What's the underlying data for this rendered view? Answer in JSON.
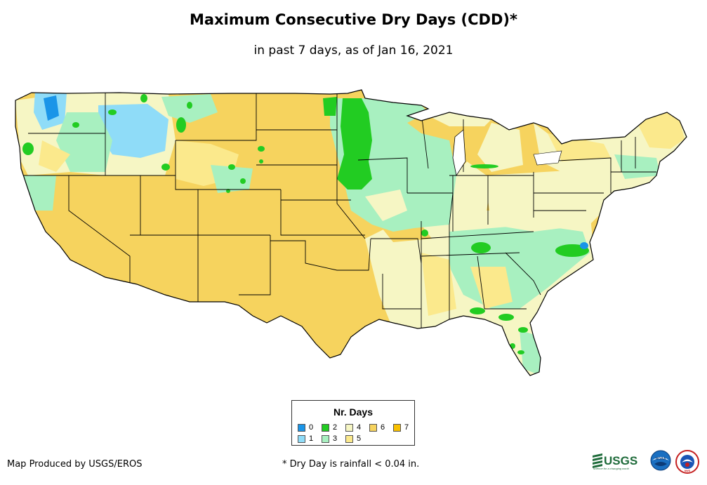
{
  "title": "Maximum Consecutive Dry Days (CDD)*",
  "subtitle": "in past 7 days, as of Jan 16, 2021",
  "legend": {
    "title": "Nr. Days",
    "items": [
      {
        "label": "0",
        "color": "#1a95e8"
      },
      {
        "label": "1",
        "color": "#8fdcf8"
      },
      {
        "label": "2",
        "color": "#22cc22"
      },
      {
        "label": "3",
        "color": "#a8f0c0"
      },
      {
        "label": "4",
        "color": "#f6f6c4"
      },
      {
        "label": "5",
        "color": "#fbe98c"
      },
      {
        "label": "6",
        "color": "#f6d35e"
      },
      {
        "label": "7",
        "color": "#f8c000"
      }
    ]
  },
  "credit": "Map Produced by USGS/EROS",
  "footnote": "* Dry Day is rainfall < 0.04 in.",
  "logos": {
    "usgs_text": "USGS",
    "usgs_tagline": "science for a changing world",
    "noaa_text": "NOAA",
    "nws_text": "NWS"
  }
}
